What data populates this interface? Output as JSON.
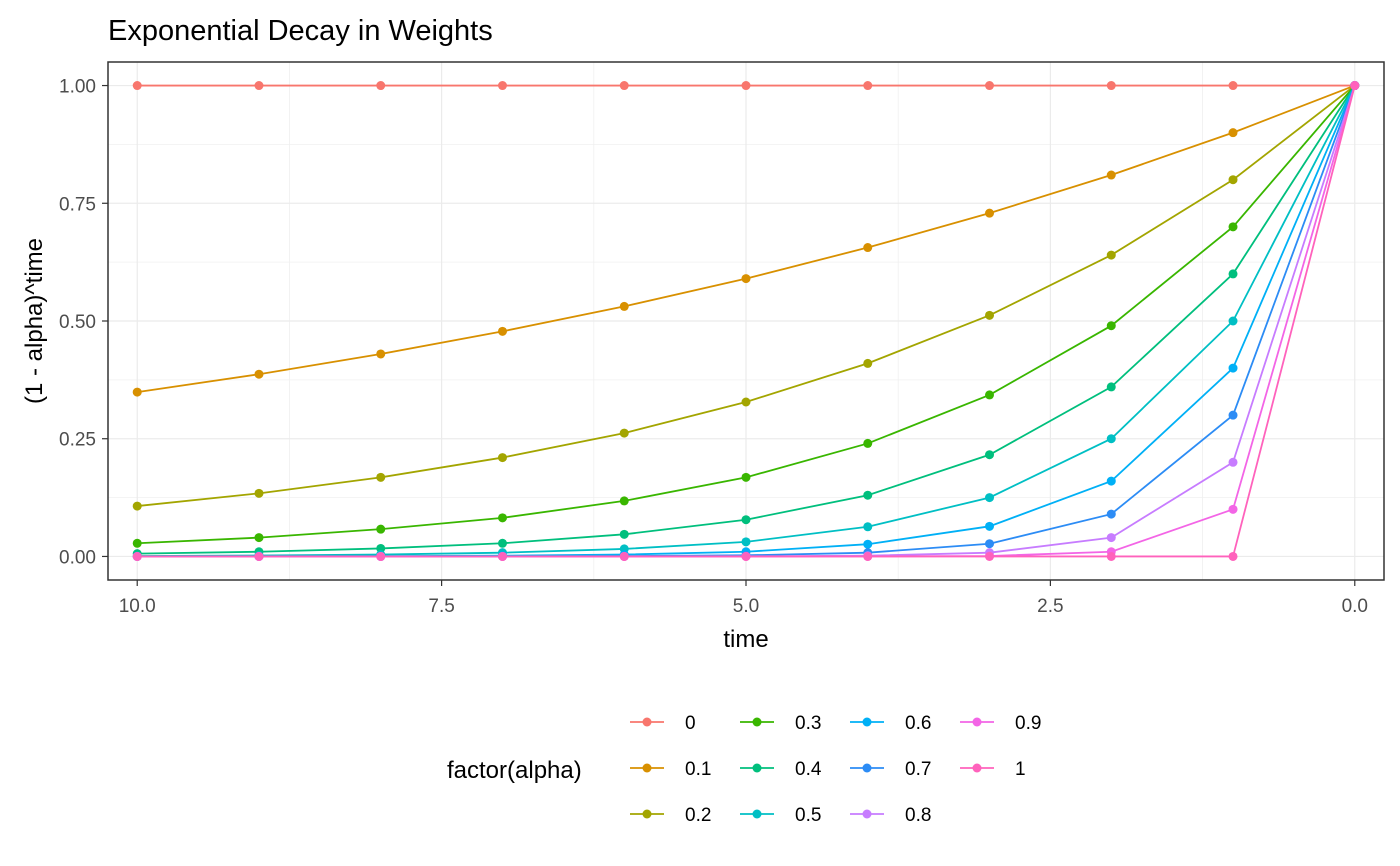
{
  "chart_data": {
    "type": "line",
    "title": "Exponential Decay in Weights",
    "xlabel": "time",
    "ylabel": "(1 - alpha)^time",
    "x_reversed": true,
    "xlim": [
      10.24,
      -0.24
    ],
    "ylim": [
      -0.05,
      1.05
    ],
    "x_ticks": [
      10.0,
      7.5,
      5.0,
      2.5,
      0.0
    ],
    "x_tick_labels": [
      "10.0",
      "7.5",
      "5.0",
      "2.5",
      "0.0"
    ],
    "y_ticks": [
      0,
      0.25,
      0.5,
      0.75,
      1.0
    ],
    "y_tick_labels": [
      "0.00",
      "0.25",
      "0.50",
      "0.75",
      "1.00"
    ],
    "grid": true,
    "legend_position": "bottom",
    "legend_title": "factor(alpha)",
    "x": [
      10,
      9,
      8,
      7,
      6,
      5,
      4,
      3,
      2,
      1,
      0
    ],
    "series": [
      {
        "name": "0",
        "color": "#F8766D",
        "values": [
          1,
          1,
          1,
          1,
          1,
          1,
          1,
          1,
          1,
          1,
          1
        ]
      },
      {
        "name": "0.1",
        "color": "#D89000",
        "values": [
          0.349,
          0.387,
          0.43,
          0.478,
          0.531,
          0.59,
          0.656,
          0.729,
          0.81,
          0.9,
          1
        ]
      },
      {
        "name": "0.2",
        "color": "#A3A500",
        "values": [
          0.107,
          0.134,
          0.168,
          0.21,
          0.262,
          0.328,
          0.41,
          0.512,
          0.64,
          0.8,
          1
        ]
      },
      {
        "name": "0.3",
        "color": "#39B600",
        "values": [
          0.028,
          0.04,
          0.058,
          0.082,
          0.118,
          0.168,
          0.24,
          0.343,
          0.49,
          0.7,
          1
        ]
      },
      {
        "name": "0.4",
        "color": "#00BF7D",
        "values": [
          0.006,
          0.01,
          0.017,
          0.028,
          0.047,
          0.078,
          0.13,
          0.216,
          0.36,
          0.6,
          1
        ]
      },
      {
        "name": "0.5",
        "color": "#00BFC4",
        "values": [
          0.001,
          0.002,
          0.004,
          0.008,
          0.016,
          0.031,
          0.063,
          0.125,
          0.25,
          0.5,
          1
        ]
      },
      {
        "name": "0.6",
        "color": "#00B0F6",
        "values": [
          0.0001,
          0.0003,
          0.0007,
          0.0016,
          0.004,
          0.01,
          0.026,
          0.064,
          0.16,
          0.4,
          1
        ]
      },
      {
        "name": "0.7",
        "color": "#2C8CF5",
        "values": [
          6e-06,
          2e-05,
          7e-05,
          0.0002,
          0.0007,
          0.0024,
          0.008,
          0.027,
          0.09,
          0.3,
          1
        ]
      },
      {
        "name": "0.8",
        "color": "#C77CFF",
        "values": [
          0,
          0,
          0,
          0,
          0.0001,
          0.0003,
          0.0016,
          0.008,
          0.04,
          0.2,
          1
        ]
      },
      {
        "name": "0.9",
        "color": "#F365E6",
        "values": [
          0,
          0,
          0,
          0,
          0,
          0,
          0.0001,
          0.001,
          0.01,
          0.1,
          1
        ]
      },
      {
        "name": "1",
        "color": "#FF62BC",
        "values": [
          0,
          0,
          0,
          0,
          0,
          0,
          0,
          0,
          0,
          0,
          1
        ]
      }
    ]
  }
}
